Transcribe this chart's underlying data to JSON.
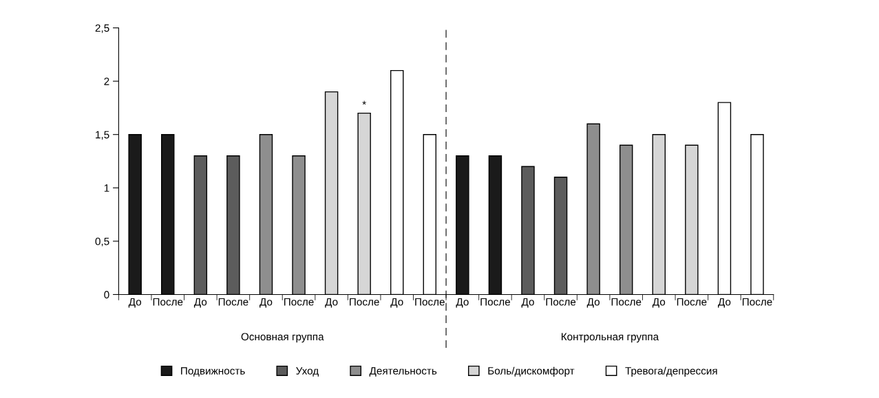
{
  "chart_data": {
    "type": "bar",
    "categories": [
      "До",
      "После",
      "До",
      "После",
      "До",
      "После",
      "До",
      "После",
      "До",
      "После",
      "До",
      "После",
      "До",
      "После",
      "До",
      "После",
      "До",
      "После",
      "До",
      "После"
    ],
    "series": [
      {
        "name": "Подвижность",
        "color": "#1a1a1a",
        "values": [
          1.5,
          1.5,
          null,
          null,
          null,
          null,
          null,
          null,
          null,
          null,
          1.3,
          1.3,
          null,
          null,
          null,
          null,
          null,
          null,
          null,
          null
        ]
      },
      {
        "name": "Уход",
        "color": "#5c5c5c",
        "values": [
          null,
          null,
          1.3,
          1.3,
          null,
          null,
          null,
          null,
          null,
          null,
          null,
          null,
          1.2,
          1.1,
          null,
          null,
          null,
          null,
          null,
          null
        ]
      },
      {
        "name": "Деятельность",
        "color": "#8e8e8e",
        "values": [
          null,
          null,
          null,
          null,
          1.5,
          1.3,
          null,
          null,
          null,
          null,
          null,
          null,
          null,
          null,
          1.6,
          1.4,
          null,
          null,
          null,
          null
        ]
      },
      {
        "name": "Боль/дискомфорт",
        "color": "#d6d6d6",
        "values": [
          null,
          null,
          null,
          null,
          null,
          null,
          1.9,
          1.7,
          null,
          null,
          null,
          null,
          null,
          null,
          null,
          null,
          1.5,
          1.4,
          null,
          null
        ],
        "value_labels": [
          null,
          null,
          null,
          null,
          null,
          null,
          null,
          "*",
          null,
          null,
          null,
          null,
          null,
          null,
          null,
          null,
          null,
          null,
          null,
          null
        ]
      },
      {
        "name": "Тревога/депрессия",
        "color": "#ffffff",
        "values": [
          null,
          null,
          null,
          null,
          null,
          null,
          null,
          null,
          2.1,
          1.5,
          null,
          null,
          null,
          null,
          null,
          null,
          null,
          null,
          1.8,
          1.5
        ]
      }
    ],
    "ylim": [
      0,
      2.5
    ],
    "yticks": [
      {
        "value": 0,
        "label": "0"
      },
      {
        "value": 0.5,
        "label": "0,5"
      },
      {
        "value": 1,
        "label": "1"
      },
      {
        "value": 1.5,
        "label": "1,5"
      },
      {
        "value": 2,
        "label": "2"
      },
      {
        "value": 2.5,
        "label": "2,5"
      }
    ],
    "annotations": [
      "Основная группа",
      "Контрольная группа"
    ],
    "legend": "bottom",
    "grid": false
  }
}
